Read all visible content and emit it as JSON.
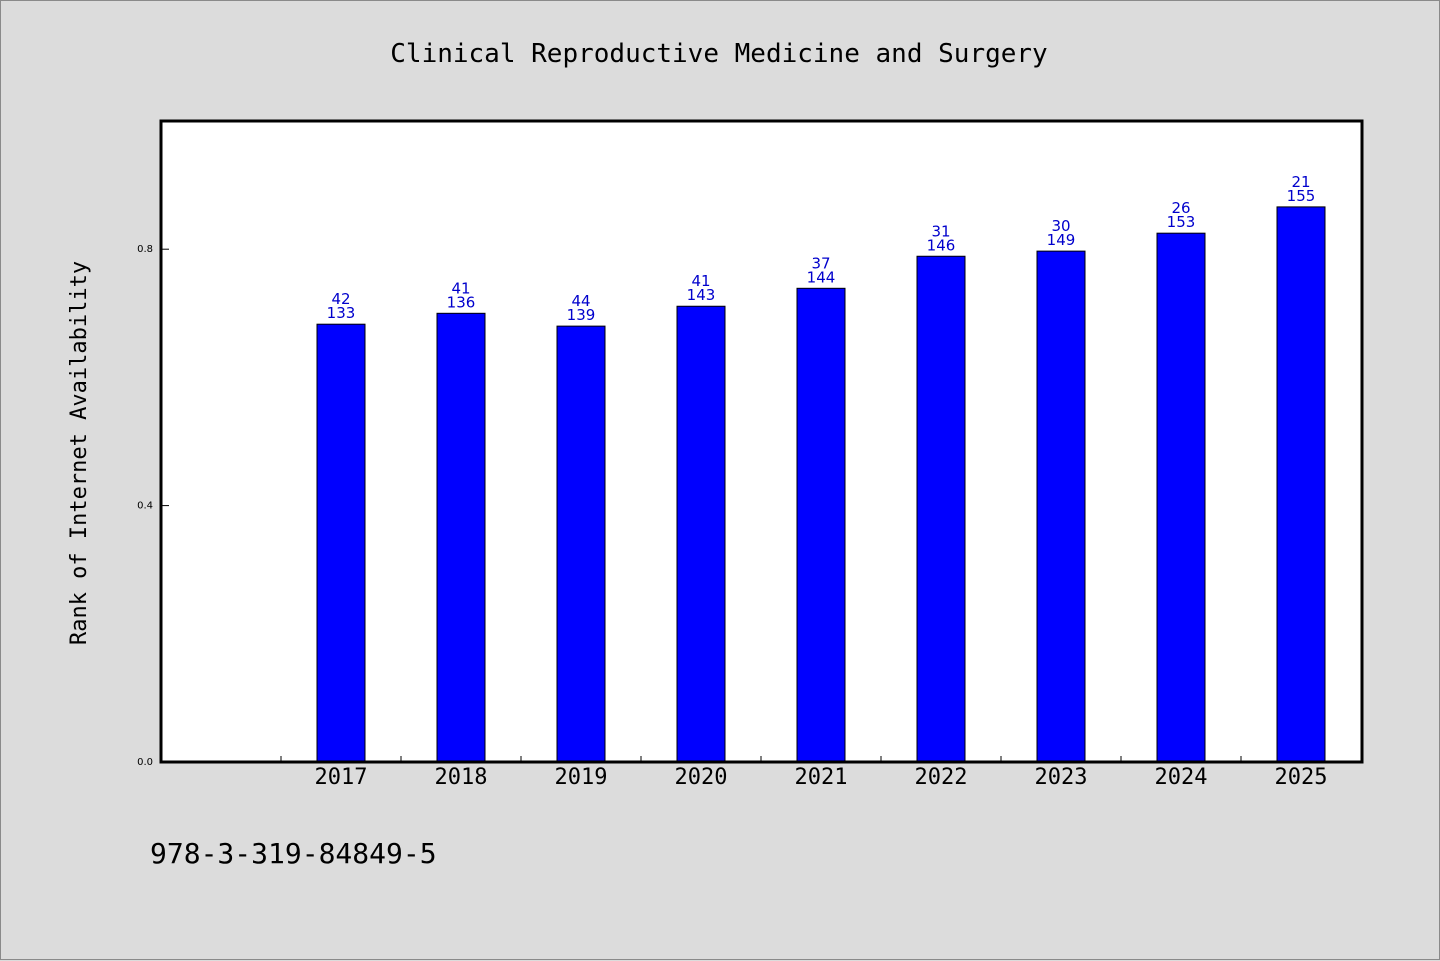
{
  "chart_data": {
    "type": "bar",
    "title": "Clinical Reproductive Medicine and Surgery",
    "xlabel": "",
    "ylabel": "Rank of Internet Availability",
    "categories": [
      "2017",
      "2018",
      "2019",
      "2020",
      "2021",
      "2022",
      "2023",
      "2024",
      "2025"
    ],
    "values": [
      0.683,
      0.7,
      0.68,
      0.711,
      0.739,
      0.789,
      0.797,
      0.825,
      0.866
    ],
    "label_top": [
      "42",
      "41",
      "44",
      "41",
      "37",
      "31",
      "30",
      "26",
      "21"
    ],
    "label_bottom": [
      "133",
      "136",
      "139",
      "143",
      "144",
      "146",
      "149",
      "153",
      "155"
    ],
    "ylim": [
      0,
      1.0
    ],
    "yticks": [
      "0.0",
      "0.4",
      "0.8"
    ],
    "grid": false,
    "bar_color": "#0000ff",
    "label_color": "#0000cc",
    "background": "#dcdcdc",
    "plot_background": "#ffffff"
  },
  "footer": {
    "isbn": "978-3-319-84849-5"
  }
}
